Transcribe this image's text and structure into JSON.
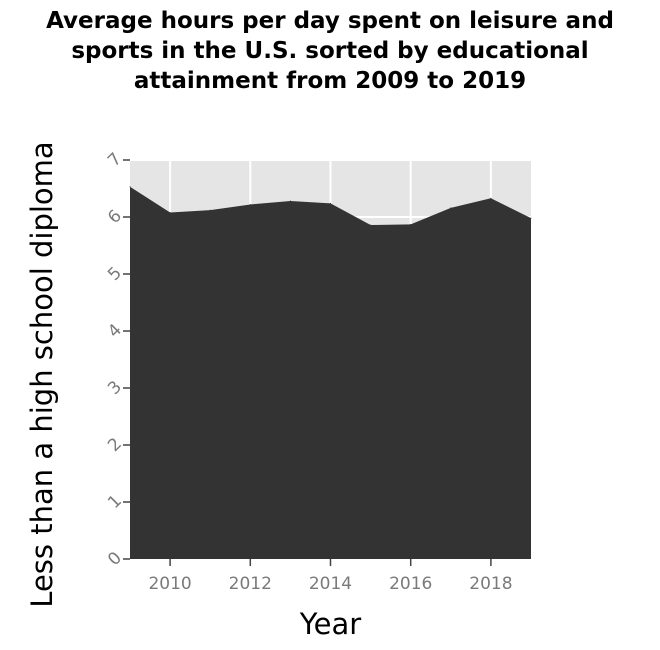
{
  "chart_data": {
    "type": "area",
    "title": "Average hours per day spent on leisure and\nsports in the U.S. sorted by educational\nattainment from 2009 to 2019",
    "xlabel": "Year",
    "ylabel": "Less than a high school diploma",
    "x": [
      2009,
      2010,
      2011,
      2012,
      2013,
      2014,
      2015,
      2016,
      2017,
      2018,
      2019
    ],
    "series": [
      {
        "values": [
          6.53,
          6.08,
          6.12,
          6.22,
          6.28,
          6.24,
          5.86,
          5.87,
          6.16,
          6.33,
          5.98
        ]
      }
    ],
    "xlim": [
      2009,
      2019
    ],
    "ylim": [
      0,
      7
    ],
    "x_ticks": [
      "2010",
      "2012",
      "2014",
      "2016",
      "2018"
    ],
    "y_ticks": [
      "0",
      "1",
      "2",
      "3",
      "4",
      "5",
      "6",
      "7"
    ],
    "grid": true,
    "colors": {
      "area": "#333333",
      "plot_background": "#e5e5e5",
      "gridline": "#ffffff",
      "tick_label": "#7a7a7a"
    }
  }
}
